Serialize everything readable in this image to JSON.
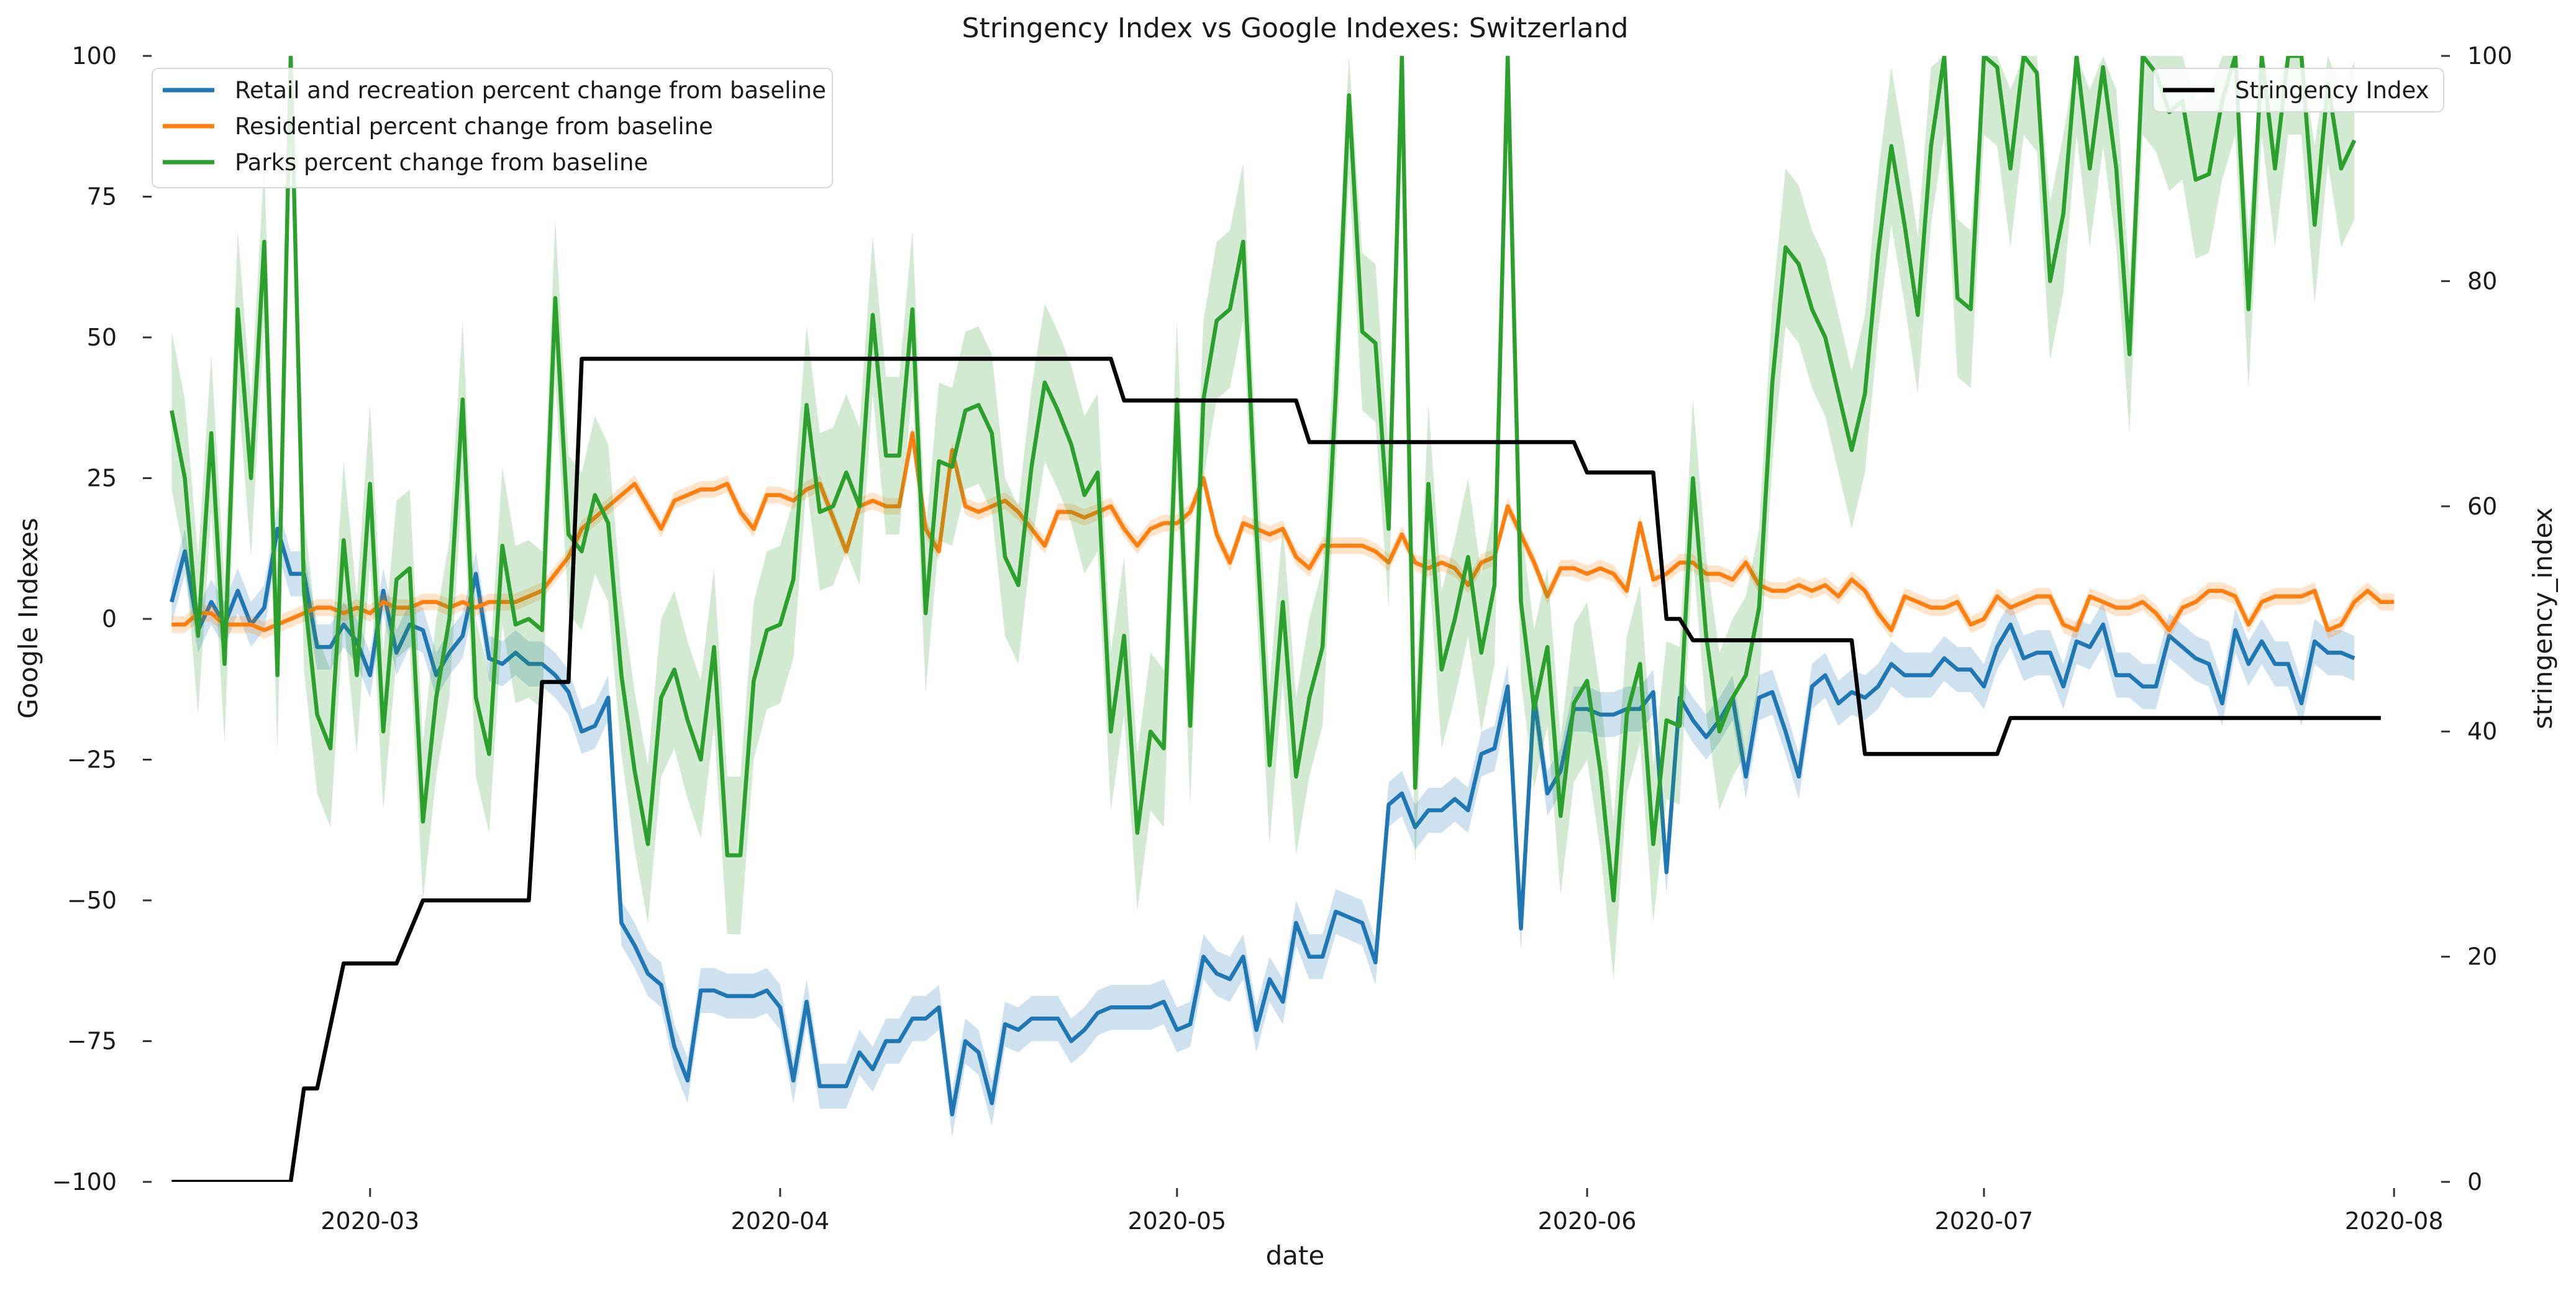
{
  "chart_data": {
    "type": "line",
    "title": "Stringency Index vs Google Indexes:  Switzerland",
    "xlabel": "date",
    "ylabel_left": "Google Indexes",
    "ylabel_right": "stringency_index",
    "x_range": [
      "2020-02-14",
      "2020-08-04"
    ],
    "ylim_left": [
      -100,
      100
    ],
    "ylim_right": [
      0,
      100
    ],
    "x_ticks": [
      "2020-03",
      "2020-04",
      "2020-05",
      "2020-06",
      "2020-07",
      "2020-08"
    ],
    "y_ticks_left": [
      "−100",
      "−75",
      "−50",
      "−25",
      "0",
      "25",
      "50",
      "75",
      "100"
    ],
    "y_ticks_right": [
      "0",
      "20",
      "40",
      "60",
      "80",
      "100"
    ],
    "grid": false,
    "start_date": "2020-02-15",
    "legend_left": {
      "placement": "upper-left",
      "entries": [
        "Retail and recreation percent change from baseline",
        "Residential percent change from baseline",
        "Parks percent change from baseline"
      ]
    },
    "legend_right": {
      "placement": "upper-right",
      "entries": [
        "Stringency Index"
      ]
    },
    "series": [
      {
        "name": "Retail and recreation percent change from baseline",
        "axis": "left",
        "color": "#1f77b4",
        "band": 4,
        "values": [
          3,
          12,
          -2,
          3,
          -1,
          5,
          -1,
          2,
          16,
          8,
          8,
          -5,
          -5,
          -1,
          -4,
          -10,
          5,
          -6,
          -1,
          -2,
          -10,
          -6,
          -3,
          8,
          -7,
          -8,
          -6,
          -8,
          -8,
          -10,
          -13,
          -20,
          -19,
          -14,
          -54,
          -58,
          -63,
          -65,
          -76,
          -82,
          -66,
          -66,
          -67,
          -67,
          -67,
          -66,
          -69,
          -82,
          -68,
          -83,
          -83,
          -83,
          -77,
          -80,
          -75,
          -75,
          -71,
          -71,
          -69,
          -88,
          -75,
          -77,
          -86,
          -72,
          -73,
          -71,
          -71,
          -71,
          -75,
          -73,
          -70,
          -69,
          -69,
          -69,
          -69,
          -68,
          -73,
          -72,
          -60,
          -63,
          -64,
          -60,
          -73,
          -64,
          -68,
          -54,
          -60,
          -60,
          -52,
          -53,
          -54,
          -61,
          -33,
          -31,
          -37,
          -34,
          -34,
          -32,
          -34,
          -24,
          -23,
          -12,
          -55,
          -14,
          -31,
          -27,
          -16,
          -16,
          -17,
          -17,
          -16,
          -16,
          -13,
          -45,
          -14,
          -18,
          -21,
          -18,
          -14,
          -28,
          -14,
          -13,
          -20,
          -28,
          -12,
          -10,
          -15,
          -13,
          -14,
          -12,
          -8,
          -10,
          -10,
          -10,
          -7,
          -9,
          -9,
          -12,
          -5,
          -1,
          -7,
          -6,
          -6,
          -12,
          -4,
          -5,
          -1,
          -10,
          -10,
          -12,
          -12,
          -3,
          -5,
          -7,
          -8,
          -15,
          -2,
          -8,
          -4,
          -8,
          -8,
          -15,
          -4,
          -6,
          -6,
          -7
        ]
      },
      {
        "name": "Residential percent change from baseline",
        "axis": "left",
        "color": "#ff7f0e",
        "band": 1.5,
        "values": [
          -1,
          -1,
          1,
          1,
          -1,
          -1,
          -1,
          -2,
          -1,
          0,
          1,
          2,
          2,
          1,
          2,
          1,
          3,
          2,
          2,
          3,
          3,
          2,
          3,
          2,
          3,
          3,
          3,
          4,
          5,
          8,
          11,
          16,
          18,
          20,
          22,
          24,
          20,
          16,
          21,
          22,
          23,
          23,
          24,
          19,
          16,
          22,
          22,
          21,
          23,
          24,
          18,
          12,
          20,
          21,
          20,
          20,
          33,
          16,
          12,
          30,
          20,
          19,
          20,
          21,
          19,
          16,
          13,
          19,
          19,
          18,
          19,
          20,
          16,
          13,
          16,
          17,
          17,
          19,
          25,
          15,
          10,
          17,
          16,
          15,
          16,
          11,
          9,
          13,
          13,
          13,
          13,
          12,
          10,
          15,
          10,
          9,
          10,
          9,
          6,
          10,
          11,
          20,
          15,
          10,
          4,
          9,
          9,
          8,
          9,
          8,
          5,
          17,
          7,
          8,
          10,
          10,
          8,
          8,
          7,
          10,
          6,
          5,
          5,
          6,
          5,
          6,
          4,
          7,
          5,
          1,
          -2,
          4,
          3,
          2,
          2,
          3,
          -1,
          0,
          4,
          2,
          3,
          4,
          4,
          -1,
          -2,
          4,
          3,
          2,
          2,
          3,
          1,
          -2,
          2,
          3,
          5,
          5,
          4,
          -1,
          3,
          4,
          4,
          4,
          5,
          -2,
          -1,
          3,
          5,
          3,
          3
        ]
      },
      {
        "name": "Parks percent change from baseline",
        "axis": "left",
        "color": "#2ca02c",
        "band": 14,
        "values": [
          37,
          25,
          -3,
          33,
          -8,
          55,
          25,
          67,
          -10,
          100,
          5,
          -17,
          -23,
          14,
          -10,
          24,
          -20,
          7,
          9,
          -36,
          -14,
          0,
          39,
          -14,
          -24,
          13,
          -1,
          0,
          -2,
          57,
          15,
          12,
          22,
          17,
          -10,
          -27,
          -40,
          -14,
          -9,
          -18,
          -25,
          -5,
          -42,
          -42,
          -11,
          -2,
          -1,
          7,
          38,
          19,
          20,
          26,
          20,
          54,
          29,
          29,
          55,
          1,
          28,
          27,
          37,
          38,
          33,
          11,
          6,
          27,
          42,
          37,
          31,
          22,
          26,
          -20,
          -3,
          -38,
          -20,
          -23,
          39,
          -19,
          39,
          53,
          55,
          67,
          16,
          -26,
          3,
          -28,
          -14,
          -5,
          40,
          93,
          51,
          49,
          16,
          100,
          -30,
          24,
          -9,
          0,
          11,
          -6,
          6,
          100,
          3,
          -16,
          -5,
          -35,
          -15,
          -11,
          -27,
          -50,
          -17,
          -8,
          -40,
          -18,
          -19,
          25,
          -3,
          -20,
          -14,
          -10,
          2,
          42,
          66,
          63,
          55,
          50,
          40,
          30,
          40,
          65,
          84,
          70,
          54,
          84,
          100,
          57,
          55,
          100,
          98,
          80,
          100,
          97,
          60,
          72,
          100,
          80,
          98,
          80,
          47,
          100,
          97,
          90,
          92,
          78,
          79,
          92,
          100,
          55,
          100,
          80,
          100,
          100,
          70,
          95,
          80,
          85
        ]
      },
      {
        "name": "Stringency Index",
        "axis": "right",
        "color": "#000000",
        "steps": [
          [
            "2020-02-15",
            0
          ],
          [
            "2020-02-24",
            0
          ],
          [
            "2020-02-25",
            8.3
          ],
          [
            "2020-02-26",
            8.3
          ],
          [
            "2020-02-28",
            19.4
          ],
          [
            "2020-03-03",
            19.4
          ],
          [
            "2020-03-05",
            25
          ],
          [
            "2020-03-13",
            25
          ],
          [
            "2020-03-14",
            44.4
          ],
          [
            "2020-03-16",
            44.4
          ],
          [
            "2020-03-17",
            73.1
          ],
          [
            "2020-04-26",
            73.1
          ],
          [
            "2020-04-27",
            69.4
          ],
          [
            "2020-05-10",
            69.4
          ],
          [
            "2020-05-11",
            65.7
          ],
          [
            "2020-05-31",
            65.7
          ],
          [
            "2020-06-01",
            63
          ],
          [
            "2020-06-06",
            63
          ],
          [
            "2020-06-07",
            50
          ],
          [
            "2020-06-08",
            50
          ],
          [
            "2020-06-09",
            48.1
          ],
          [
            "2020-06-21",
            48.1
          ],
          [
            "2020-06-22",
            38
          ],
          [
            "2020-07-02",
            38
          ],
          [
            "2020-07-03",
            41.2
          ],
          [
            "2020-07-31",
            41.2
          ]
        ]
      }
    ]
  }
}
